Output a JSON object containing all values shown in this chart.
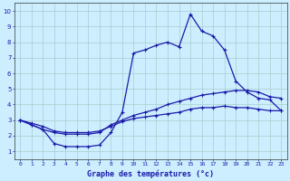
{
  "xlabel": "Graphe des températures (°c)",
  "background_color": "#cceeff",
  "grid_color": "#aacccc",
  "line_color": "#1a1aaa",
  "xlim": [
    -0.5,
    23.5
  ],
  "ylim": [
    0.5,
    10.5
  ],
  "xticks": [
    0,
    1,
    2,
    3,
    4,
    5,
    6,
    7,
    8,
    9,
    10,
    11,
    12,
    13,
    14,
    15,
    16,
    17,
    18,
    19,
    20,
    21,
    22,
    23
  ],
  "yticks": [
    1,
    2,
    3,
    4,
    5,
    6,
    7,
    8,
    9,
    10
  ],
  "line1_x": [
    0,
    1,
    2,
    3,
    4,
    5,
    6,
    7,
    8,
    9,
    10,
    11,
    12,
    13,
    14,
    15,
    16,
    17,
    18,
    19,
    20,
    21,
    22,
    23
  ],
  "line1_y": [
    3.0,
    2.7,
    2.4,
    1.5,
    1.3,
    1.3,
    1.3,
    1.4,
    2.2,
    3.5,
    7.3,
    7.5,
    7.8,
    8.0,
    7.7,
    9.8,
    8.7,
    8.4,
    7.5,
    5.5,
    4.8,
    4.4,
    4.3,
    3.6
  ],
  "line2_x": [
    0,
    1,
    2,
    3,
    4,
    5,
    6,
    7,
    8,
    9,
    10,
    11,
    12,
    13,
    14,
    15,
    16,
    17,
    18,
    19,
    20,
    21,
    22,
    23
  ],
  "line2_y": [
    3.0,
    2.7,
    2.4,
    2.2,
    2.1,
    2.1,
    2.1,
    2.2,
    2.7,
    3.0,
    3.3,
    3.5,
    3.7,
    4.0,
    4.2,
    4.4,
    4.6,
    4.7,
    4.8,
    4.9,
    4.9,
    4.8,
    4.5,
    4.4
  ],
  "line3_x": [
    0,
    1,
    2,
    3,
    4,
    5,
    6,
    7,
    8,
    9,
    10,
    11,
    12,
    13,
    14,
    15,
    16,
    17,
    18,
    19,
    20,
    21,
    22,
    23
  ],
  "line3_y": [
    3.0,
    2.8,
    2.6,
    2.3,
    2.2,
    2.2,
    2.2,
    2.3,
    2.6,
    2.9,
    3.1,
    3.2,
    3.3,
    3.4,
    3.5,
    3.7,
    3.8,
    3.8,
    3.9,
    3.8,
    3.8,
    3.7,
    3.6,
    3.6
  ]
}
